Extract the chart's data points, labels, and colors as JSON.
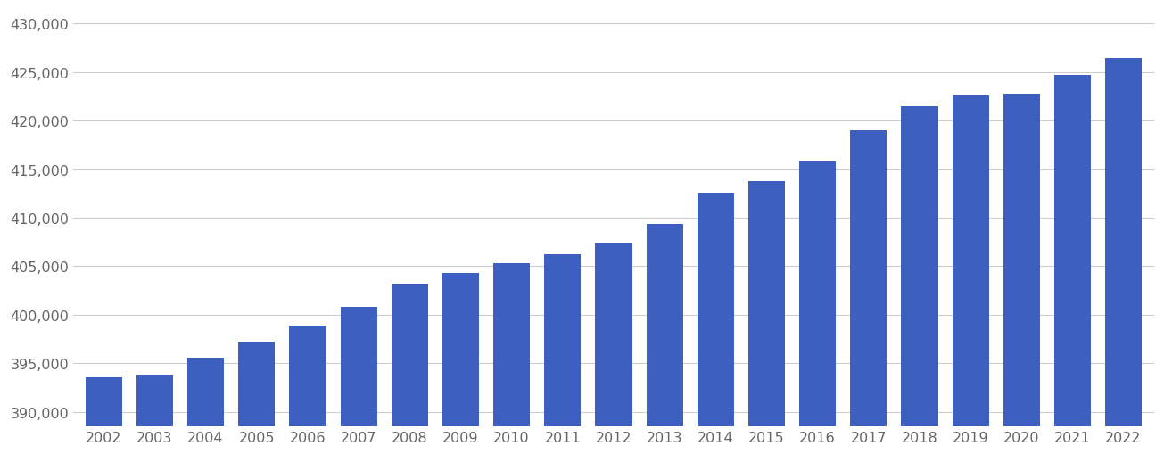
{
  "years": [
    2002,
    2003,
    2004,
    2005,
    2006,
    2007,
    2008,
    2009,
    2010,
    2011,
    2012,
    2013,
    2014,
    2015,
    2016,
    2017,
    2018,
    2019,
    2020,
    2021,
    2022
  ],
  "values": [
    393600,
    393800,
    395600,
    397200,
    398900,
    400800,
    403200,
    404300,
    405300,
    406200,
    407400,
    409400,
    412600,
    413800,
    415800,
    419000,
    421500,
    422600,
    422800,
    424700,
    426500
  ],
  "bar_color": "#3d5fc0",
  "background_color": "#ffffff",
  "grid_color": "#cccccc",
  "ylim_min": 388500,
  "ylim_max": 431500,
  "ytick_values": [
    390000,
    395000,
    400000,
    405000,
    410000,
    415000,
    420000,
    425000,
    430000
  ],
  "tick_label_color": "#666666",
  "tick_fontsize": 11.5,
  "bar_width": 0.72
}
